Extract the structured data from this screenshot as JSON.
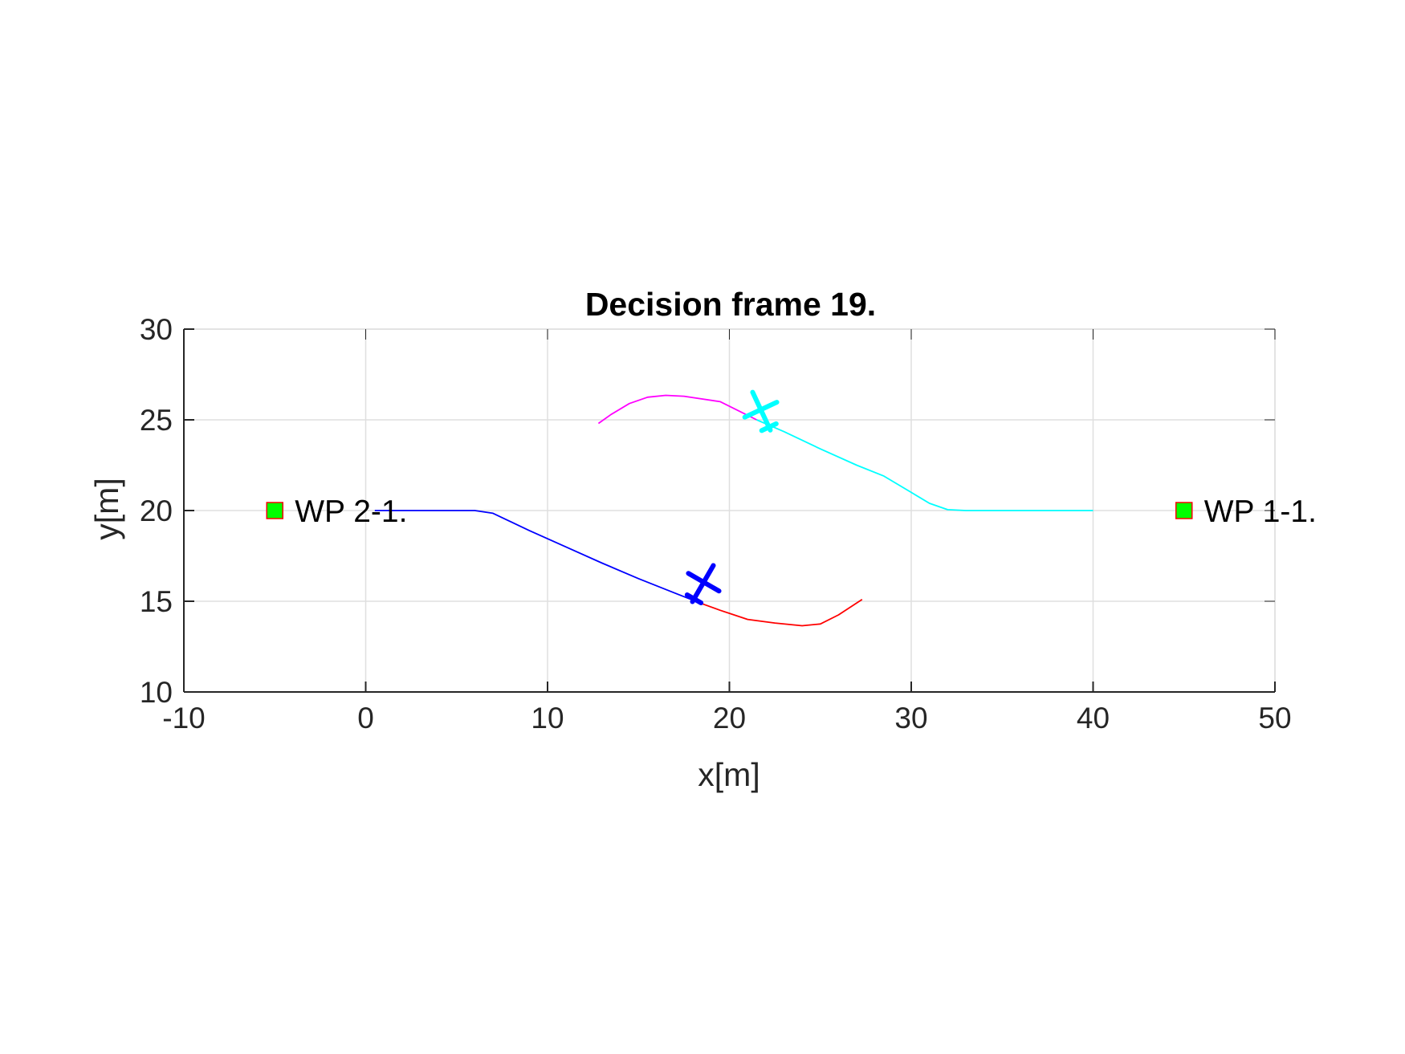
{
  "chart_data": {
    "type": "line",
    "title": "Decision frame 19.",
    "xlabel": "x[m]",
    "ylabel": "y[m]",
    "xlim": [
      -10,
      50
    ],
    "ylim": [
      10,
      30
    ],
    "xticks": [
      "-10",
      "0",
      "10",
      "20",
      "30",
      "40",
      "50"
    ],
    "yticks": [
      "10",
      "15",
      "20",
      "25",
      "30"
    ],
    "grid": true,
    "series": [
      {
        "color": "#0000ff",
        "x": [
          0.5,
          2,
          4,
          6,
          7,
          9,
          11,
          13,
          15,
          17,
          18.4
        ],
        "y": [
          20,
          20,
          20,
          20,
          19.85,
          18.9,
          18.0,
          17.1,
          16.25,
          15.45,
          14.9
        ]
      },
      {
        "color": "#ff0000",
        "x": [
          18.4,
          19.5,
          21,
          22.5,
          24,
          25,
          26,
          27.3
        ],
        "y": [
          14.9,
          14.5,
          14.0,
          13.8,
          13.65,
          13.75,
          14.25,
          15.1
        ]
      },
      {
        "color": "#ff00ff",
        "x": [
          12.8,
          13.5,
          14.5,
          15.5,
          16.5,
          17.5,
          19.5,
          20.5,
          21.5
        ],
        "y": [
          24.8,
          25.3,
          25.9,
          26.25,
          26.35,
          26.3,
          26.0,
          25.5,
          25.0
        ]
      },
      {
        "color": "#00ffff",
        "x": [
          21.5,
          23,
          25,
          27,
          28.5,
          30,
          31,
          32,
          33,
          35,
          37,
          39,
          40
        ],
        "y": [
          25.0,
          24.35,
          23.4,
          22.5,
          21.9,
          21.0,
          20.4,
          20.05,
          20.0,
          20.0,
          20.0,
          20.0,
          20.0
        ]
      }
    ],
    "aircraft": [
      {
        "color": "#0000ff",
        "x": 18.5,
        "y": 15.9,
        "heading_deg": 60
      },
      {
        "color": "#00ffff",
        "x": 21.8,
        "y": 25.4,
        "heading_deg": 115
      }
    ],
    "waypoints": [
      {
        "label": "WP 2-1.",
        "x": -5,
        "y": 20,
        "fill": "#00ff00",
        "edge": "#ff0000"
      },
      {
        "label": "WP 1-1.",
        "x": 45,
        "y": 20,
        "fill": "#00ff00",
        "edge": "#ff0000"
      }
    ]
  }
}
